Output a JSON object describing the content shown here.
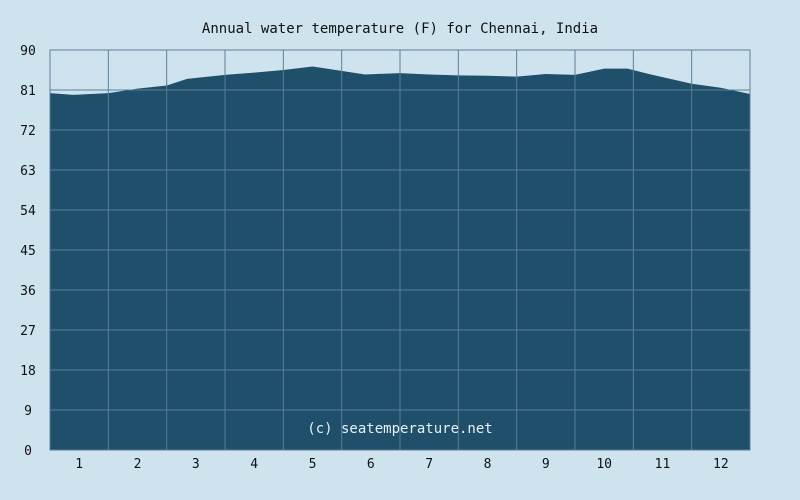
{
  "chart_data": {
    "type": "area",
    "title": "Annual water temperature (F) for Chennai, India",
    "xlabel": "",
    "ylabel": "",
    "ylim": [
      0,
      90
    ],
    "xlim": [
      0.5,
      12.5
    ],
    "y_ticks": [
      "0",
      "9",
      "18",
      "27",
      "36",
      "45",
      "54",
      "63",
      "72",
      "81",
      "90"
    ],
    "x_ticks": [
      "1",
      "2",
      "3",
      "4",
      "5",
      "6",
      "7",
      "8",
      "9",
      "10",
      "11",
      "12"
    ],
    "grid": true,
    "watermark": "(c) seatemperature.net",
    "x": [
      0.5,
      0.9,
      1.5,
      2.0,
      2.5,
      2.85,
      3.5,
      4.0,
      4.5,
      5.0,
      5.4,
      5.9,
      6.5,
      7.0,
      7.5,
      8.0,
      8.5,
      9.0,
      9.5,
      10.0,
      10.4,
      10.8,
      11.2,
      11.5,
      12.0,
      12.5
    ],
    "series": [
      {
        "values": [
          80.3,
          79.9,
          80.3,
          81.3,
          82.0,
          83.5,
          84.4,
          84.9,
          85.5,
          86.3,
          85.5,
          84.5,
          84.8,
          84.5,
          84.3,
          84.2,
          84.0,
          84.6,
          84.4,
          85.8,
          85.8,
          84.5,
          83.3,
          82.4,
          81.5,
          80.1
        ]
      }
    ],
    "colors": {
      "background": "#cfe3ef",
      "area": "#1f4f6b",
      "grid": "#5b7f97",
      "frame": "#5b7f97"
    }
  }
}
